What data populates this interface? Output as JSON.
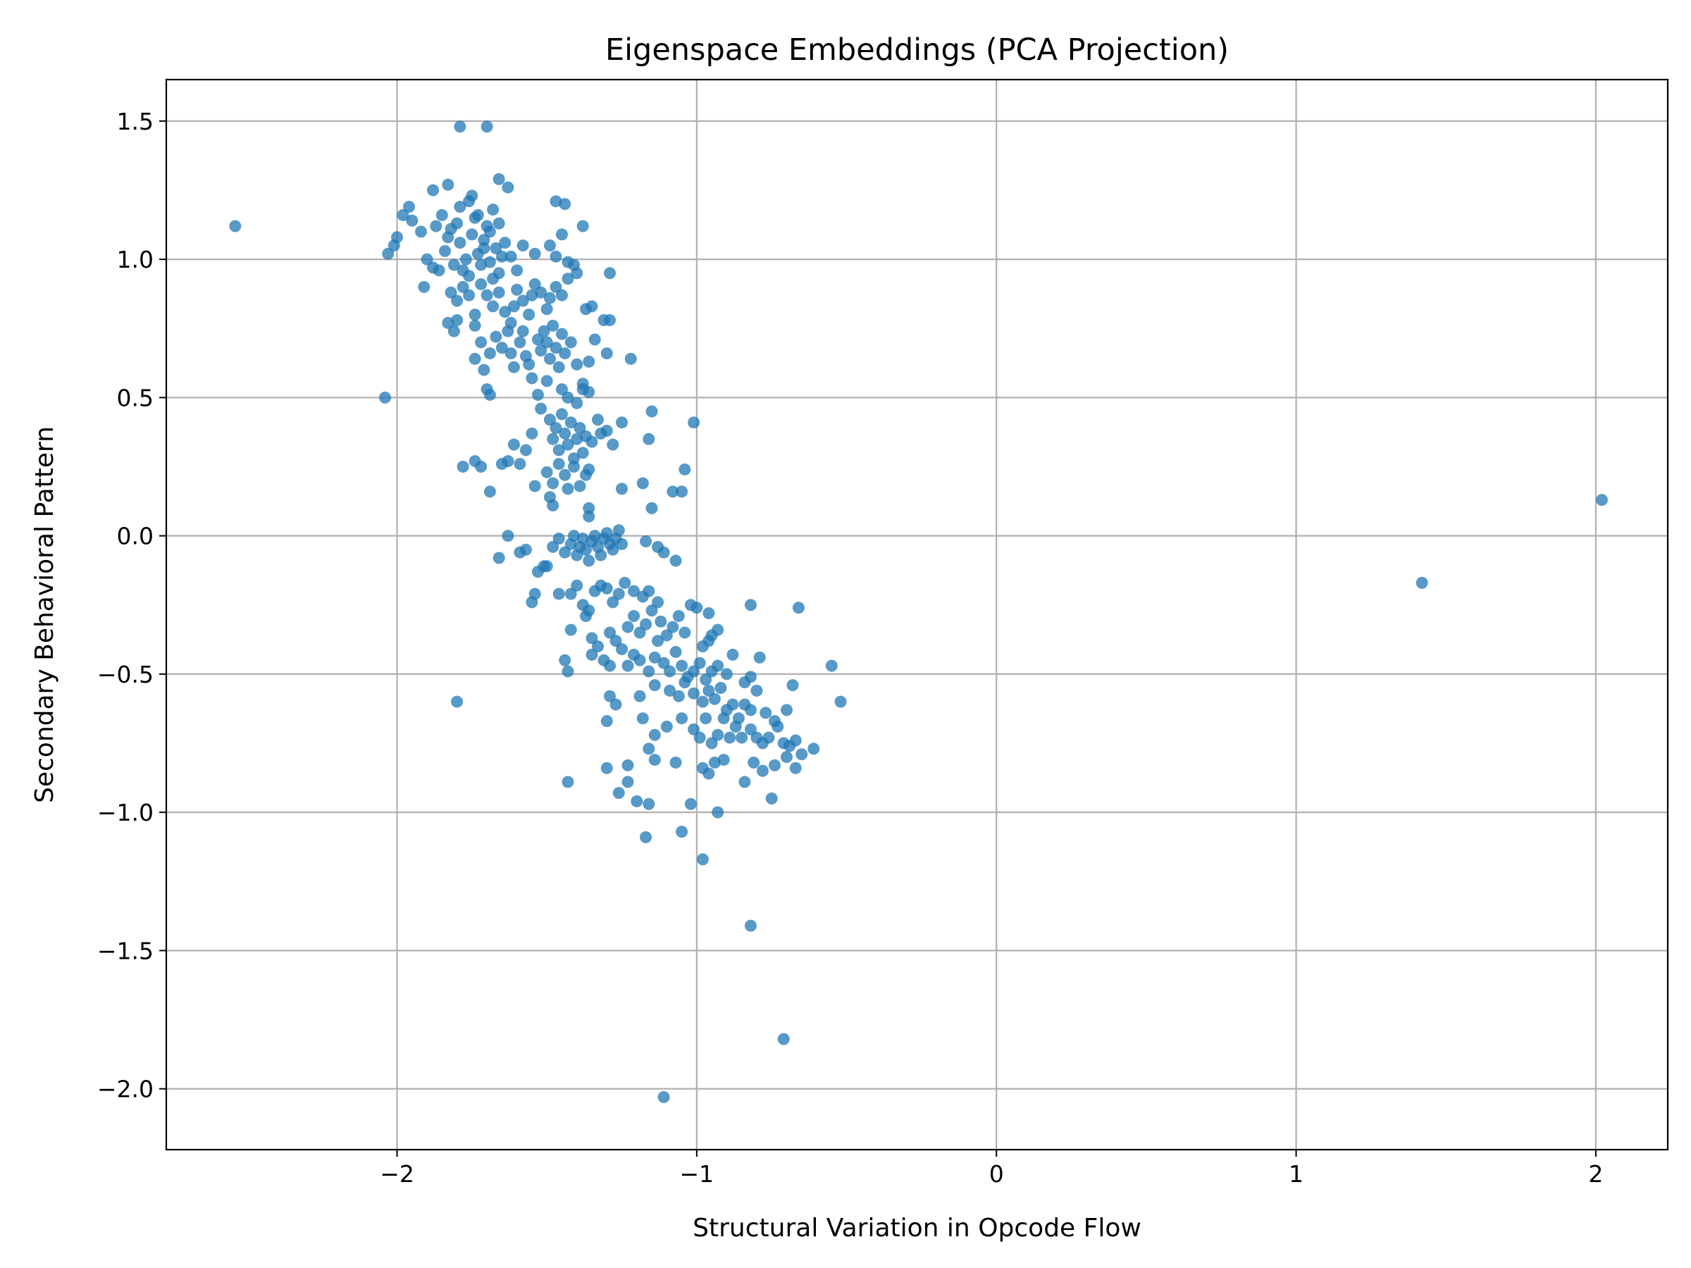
{
  "chart_data": {
    "type": "scatter",
    "title": "Eigenspace Embeddings (PCA Projection)",
    "xlabel": "Structural Variation in Opcode Flow",
    "ylabel": "Secondary Behavioral Pattern",
    "xlim": [
      -2.77,
      2.24
    ],
    "ylim": [
      -2.22,
      1.65
    ],
    "xticks": [
      -2,
      -1,
      0,
      1,
      2
    ],
    "xtick_labels": [
      "−2",
      "−1",
      "0",
      "1",
      "2"
    ],
    "yticks": [
      -2.0,
      -1.5,
      -1.0,
      -0.5,
      0.0,
      0.5,
      1.0,
      1.5
    ],
    "ytick_labels": [
      "−2.0",
      "−1.5",
      "−1.0",
      "−0.5",
      "0.0",
      "0.5",
      "1.0",
      "1.5"
    ],
    "grid": true,
    "marker_color": "#1f77b4",
    "marker_alpha": 0.75,
    "points": [
      [
        -2.54,
        1.12
      ],
      [
        2.02,
        0.13
      ],
      [
        1.42,
        -0.17
      ],
      [
        -1.11,
        -2.03
      ],
      [
        -0.71,
        -1.82
      ],
      [
        -0.82,
        -1.41
      ],
      [
        -1.79,
        1.48
      ],
      [
        -1.7,
        1.48
      ],
      [
        -1.88,
        1.25
      ],
      [
        -1.83,
        1.27
      ],
      [
        -1.66,
        1.29
      ],
      [
        -1.63,
        1.26
      ],
      [
        -1.96,
        1.19
      ],
      [
        -1.98,
        1.16
      ],
      [
        -1.75,
        1.23
      ],
      [
        -1.68,
        1.18
      ],
      [
        -1.47,
        1.21
      ],
      [
        -1.44,
        1.2
      ],
      [
        -1.38,
        1.12
      ],
      [
        -2.03,
        1.02
      ],
      [
        -2.01,
        1.05
      ],
      [
        -2.0,
        1.08
      ],
      [
        -1.95,
        1.14
      ],
      [
        -1.92,
        1.1
      ],
      [
        -1.9,
        1.0
      ],
      [
        -1.88,
        0.97
      ],
      [
        -1.86,
        0.96
      ],
      [
        -1.84,
        1.03
      ],
      [
        -1.82,
        1.11
      ],
      [
        -1.8,
        1.13
      ],
      [
        -1.79,
        1.06
      ],
      [
        -1.77,
        1.0
      ],
      [
        -1.76,
        0.94
      ],
      [
        -1.75,
        1.09
      ],
      [
        -1.74,
        1.15
      ],
      [
        -1.73,
        1.02
      ],
      [
        -1.72,
        0.98
      ],
      [
        -1.71,
        1.07
      ],
      [
        -1.7,
        1.12
      ],
      [
        -1.69,
        0.99
      ],
      [
        -1.68,
        0.93
      ],
      [
        -1.67,
        1.04
      ],
      [
        -1.66,
        0.95
      ],
      [
        -1.65,
        1.01
      ],
      [
        -1.64,
        1.06
      ],
      [
        -1.81,
        0.98
      ],
      [
        -1.78,
        0.96
      ],
      [
        -1.83,
        1.08
      ],
      [
        -1.85,
        1.16
      ],
      [
        -1.87,
        1.12
      ],
      [
        -1.79,
        1.19
      ],
      [
        -1.76,
        1.21
      ],
      [
        -1.73,
        1.16
      ],
      [
        -1.71,
        1.04
      ],
      [
        -1.69,
        1.1
      ],
      [
        -1.66,
        1.13
      ],
      [
        -1.62,
        1.01
      ],
      [
        -1.6,
        0.96
      ],
      [
        -1.58,
        1.05
      ],
      [
        -1.54,
        1.02
      ],
      [
        -1.49,
        1.05
      ],
      [
        -1.47,
        1.01
      ],
      [
        -1.45,
        1.09
      ],
      [
        -1.43,
        0.99
      ],
      [
        -1.41,
        0.98
      ],
      [
        -1.91,
        0.9
      ],
      [
        -1.8,
        0.85
      ],
      [
        -1.8,
        0.78
      ],
      [
        -1.81,
        0.74
      ],
      [
        -1.83,
        0.77
      ],
      [
        -1.82,
        0.88
      ],
      [
        -1.78,
        0.9
      ],
      [
        -1.76,
        0.87
      ],
      [
        -1.74,
        0.8
      ],
      [
        -1.72,
        0.91
      ],
      [
        -1.7,
        0.87
      ],
      [
        -1.68,
        0.83
      ],
      [
        -1.66,
        0.88
      ],
      [
        -1.64,
        0.81
      ],
      [
        -1.62,
        0.77
      ],
      [
        -1.61,
        0.83
      ],
      [
        -1.6,
        0.89
      ],
      [
        -1.58,
        0.85
      ],
      [
        -1.56,
        0.8
      ],
      [
        -1.55,
        0.87
      ],
      [
        -1.54,
        0.91
      ],
      [
        -1.52,
        0.88
      ],
      [
        -1.5,
        0.82
      ],
      [
        -1.49,
        0.86
      ],
      [
        -1.47,
        0.9
      ],
      [
        -1.45,
        0.87
      ],
      [
        -1.43,
        0.93
      ],
      [
        -1.4,
        0.95
      ],
      [
        -1.37,
        0.82
      ],
      [
        -1.35,
        0.83
      ],
      [
        -1.31,
        0.78
      ],
      [
        -1.29,
        0.78
      ],
      [
        -1.29,
        0.95
      ],
      [
        -1.74,
        0.76
      ],
      [
        -1.72,
        0.7
      ],
      [
        -1.74,
        0.64
      ],
      [
        -1.71,
        0.6
      ],
      [
        -1.69,
        0.66
      ],
      [
        -1.67,
        0.72
      ],
      [
        -1.65,
        0.68
      ],
      [
        -1.63,
        0.74
      ],
      [
        -1.62,
        0.66
      ],
      [
        -1.61,
        0.61
      ],
      [
        -1.59,
        0.7
      ],
      [
        -1.58,
        0.74
      ],
      [
        -1.57,
        0.65
      ],
      [
        -1.56,
        0.62
      ],
      [
        -1.55,
        0.57
      ],
      [
        -1.53,
        0.71
      ],
      [
        -1.52,
        0.67
      ],
      [
        -1.51,
        0.74
      ],
      [
        -1.5,
        0.7
      ],
      [
        -1.49,
        0.64
      ],
      [
        -1.48,
        0.76
      ],
      [
        -1.47,
        0.68
      ],
      [
        -1.46,
        0.61
      ],
      [
        -1.45,
        0.73
      ],
      [
        -1.44,
        0.66
      ],
      [
        -1.42,
        0.7
      ],
      [
        -1.4,
        0.62
      ],
      [
        -1.38,
        0.55
      ],
      [
        -1.36,
        0.63
      ],
      [
        -1.34,
        0.71
      ],
      [
        -1.3,
        0.66
      ],
      [
        -1.22,
        0.64
      ],
      [
        -1.7,
        0.53
      ],
      [
        -1.69,
        0.51
      ],
      [
        -1.53,
        0.51
      ],
      [
        -1.5,
        0.56
      ],
      [
        -1.45,
        0.53
      ],
      [
        -1.43,
        0.5
      ],
      [
        -1.4,
        0.48
      ],
      [
        -1.38,
        0.53
      ],
      [
        -1.36,
        0.52
      ],
      [
        -2.04,
        0.5
      ],
      [
        -1.52,
        0.46
      ],
      [
        -1.49,
        0.42
      ],
      [
        -1.48,
        0.35
      ],
      [
        -1.47,
        0.39
      ],
      [
        -1.46,
        0.31
      ],
      [
        -1.45,
        0.44
      ],
      [
        -1.44,
        0.37
      ],
      [
        -1.43,
        0.33
      ],
      [
        -1.42,
        0.41
      ],
      [
        -1.41,
        0.28
      ],
      [
        -1.4,
        0.35
      ],
      [
        -1.39,
        0.39
      ],
      [
        -1.38,
        0.3
      ],
      [
        -1.37,
        0.36
      ],
      [
        -1.36,
        0.24
      ],
      [
        -1.35,
        0.34
      ],
      [
        -1.33,
        0.42
      ],
      [
        -1.32,
        0.37
      ],
      [
        -1.3,
        0.38
      ],
      [
        -1.28,
        0.33
      ],
      [
        -1.25,
        0.41
      ],
      [
        -1.55,
        0.37
      ],
      [
        -1.57,
        0.31
      ],
      [
        -1.59,
        0.26
      ],
      [
        -1.61,
        0.33
      ],
      [
        -1.5,
        0.23
      ],
      [
        -1.48,
        0.19
      ],
      [
        -1.46,
        0.26
      ],
      [
        -1.44,
        0.22
      ],
      [
        -1.41,
        0.25
      ],
      [
        -1.39,
        0.18
      ],
      [
        -1.37,
        0.22
      ],
      [
        -1.63,
        0.27
      ],
      [
        -1.65,
        0.26
      ],
      [
        -1.74,
        0.27
      ],
      [
        -1.72,
        0.25
      ],
      [
        -1.78,
        0.25
      ],
      [
        -1.69,
        0.16
      ],
      [
        -1.54,
        0.18
      ],
      [
        -1.49,
        0.14
      ],
      [
        -1.48,
        0.11
      ],
      [
        -1.43,
        0.17
      ],
      [
        -1.36,
        0.1
      ],
      [
        -1.36,
        0.07
      ],
      [
        -1.25,
        0.17
      ],
      [
        -1.18,
        0.19
      ],
      [
        -1.15,
        0.45
      ],
      [
        -1.16,
        0.35
      ],
      [
        -1.15,
        0.1
      ],
      [
        -1.08,
        0.16
      ],
      [
        -1.05,
        0.16
      ],
      [
        -1.04,
        0.24
      ],
      [
        -1.01,
        0.41
      ],
      [
        -1.63,
        0.0
      ],
      [
        -1.66,
        -0.08
      ],
      [
        -1.59,
        -0.06
      ],
      [
        -1.57,
        -0.05
      ],
      [
        -1.53,
        -0.13
      ],
      [
        -1.5,
        -0.11
      ],
      [
        -1.48,
        -0.04
      ],
      [
        -1.46,
        -0.01
      ],
      [
        -1.44,
        -0.06
      ],
      [
        -1.42,
        -0.03
      ],
      [
        -1.41,
        0.0
      ],
      [
        -1.4,
        -0.07
      ],
      [
        -1.39,
        -0.04
      ],
      [
        -1.38,
        -0.01
      ],
      [
        -1.37,
        -0.05
      ],
      [
        -1.36,
        -0.09
      ],
      [
        -1.35,
        -0.02
      ],
      [
        -1.34,
        0.0
      ],
      [
        -1.33,
        -0.04
      ],
      [
        -1.32,
        -0.07
      ],
      [
        -1.31,
        -0.01
      ],
      [
        -1.3,
        0.01
      ],
      [
        -1.29,
        -0.03
      ],
      [
        -1.28,
        -0.05
      ],
      [
        -1.27,
        -0.01
      ],
      [
        -1.26,
        0.02
      ],
      [
        -1.25,
        -0.03
      ],
      [
        -1.17,
        -0.02
      ],
      [
        -1.13,
        -0.04
      ],
      [
        -1.11,
        -0.06
      ],
      [
        -1.07,
        -0.09
      ],
      [
        -1.51,
        -0.11
      ],
      [
        -1.54,
        -0.21
      ],
      [
        -1.55,
        -0.24
      ],
      [
        -1.46,
        -0.21
      ],
      [
        -1.42,
        -0.21
      ],
      [
        -1.4,
        -0.18
      ],
      [
        -1.38,
        -0.25
      ],
      [
        -1.36,
        -0.27
      ],
      [
        -1.34,
        -0.2
      ],
      [
        -1.32,
        -0.18
      ],
      [
        -1.3,
        -0.19
      ],
      [
        -1.28,
        -0.24
      ],
      [
        -1.26,
        -0.21
      ],
      [
        -1.24,
        -0.17
      ],
      [
        -1.21,
        -0.2
      ],
      [
        -1.18,
        -0.22
      ],
      [
        -1.16,
        -0.2
      ],
      [
        -1.13,
        -0.24
      ],
      [
        -1.37,
        -0.29
      ],
      [
        -1.42,
        -0.34
      ],
      [
        -1.35,
        -0.37
      ],
      [
        -1.33,
        -0.4
      ],
      [
        -1.35,
        -0.43
      ],
      [
        -1.29,
        -0.35
      ],
      [
        -1.27,
        -0.38
      ],
      [
        -1.25,
        -0.41
      ],
      [
        -1.23,
        -0.33
      ],
      [
        -1.21,
        -0.29
      ],
      [
        -1.19,
        -0.35
      ],
      [
        -1.17,
        -0.32
      ],
      [
        -1.15,
        -0.27
      ],
      [
        -1.13,
        -0.38
      ],
      [
        -1.12,
        -0.31
      ],
      [
        -1.1,
        -0.36
      ],
      [
        -1.08,
        -0.33
      ],
      [
        -1.06,
        -0.29
      ],
      [
        -1.04,
        -0.35
      ],
      [
        -1.02,
        -0.25
      ],
      [
        -1.0,
        -0.26
      ],
      [
        -0.98,
        -0.4
      ],
      [
        -0.96,
        -0.38
      ],
      [
        -0.95,
        -0.36
      ],
      [
        -0.93,
        -0.34
      ],
      [
        -0.96,
        -0.28
      ],
      [
        -0.82,
        -0.25
      ],
      [
        -0.66,
        -0.26
      ],
      [
        -1.44,
        -0.45
      ],
      [
        -1.43,
        -0.49
      ],
      [
        -1.31,
        -0.45
      ],
      [
        -1.29,
        -0.47
      ],
      [
        -1.23,
        -0.47
      ],
      [
        -1.21,
        -0.43
      ],
      [
        -1.19,
        -0.45
      ],
      [
        -1.16,
        -0.49
      ],
      [
        -1.14,
        -0.44
      ],
      [
        -1.11,
        -0.46
      ],
      [
        -1.09,
        -0.49
      ],
      [
        -1.07,
        -0.42
      ],
      [
        -1.05,
        -0.47
      ],
      [
        -1.03,
        -0.51
      ],
      [
        -1.01,
        -0.49
      ],
      [
        -0.99,
        -0.46
      ],
      [
        -0.97,
        -0.52
      ],
      [
        -0.95,
        -0.49
      ],
      [
        -0.93,
        -0.47
      ],
      [
        -0.9,
        -0.5
      ],
      [
        -0.88,
        -0.43
      ],
      [
        -0.84,
        -0.53
      ],
      [
        -0.82,
        -0.51
      ],
      [
        -0.79,
        -0.44
      ],
      [
        -0.55,
        -0.47
      ],
      [
        -1.29,
        -0.58
      ],
      [
        -1.27,
        -0.61
      ],
      [
        -1.19,
        -0.58
      ],
      [
        -1.14,
        -0.54
      ],
      [
        -1.09,
        -0.56
      ],
      [
        -1.06,
        -0.58
      ],
      [
        -1.04,
        -0.53
      ],
      [
        -1.01,
        -0.57
      ],
      [
        -0.98,
        -0.6
      ],
      [
        -0.96,
        -0.56
      ],
      [
        -0.94,
        -0.59
      ],
      [
        -0.92,
        -0.55
      ],
      [
        -0.9,
        -0.63
      ],
      [
        -0.88,
        -0.61
      ],
      [
        -0.86,
        -0.66
      ],
      [
        -0.84,
        -0.61
      ],
      [
        -0.82,
        -0.63
      ],
      [
        -0.8,
        -0.56
      ],
      [
        -0.77,
        -0.64
      ],
      [
        -0.74,
        -0.67
      ],
      [
        -0.7,
        -0.63
      ],
      [
        -0.68,
        -0.54
      ],
      [
        -0.52,
        -0.6
      ],
      [
        -1.8,
        -0.6
      ],
      [
        -1.3,
        -0.67
      ],
      [
        -1.18,
        -0.66
      ],
      [
        -1.14,
        -0.72
      ],
      [
        -1.1,
        -0.69
      ],
      [
        -1.05,
        -0.66
      ],
      [
        -1.01,
        -0.7
      ],
      [
        -0.99,
        -0.73
      ],
      [
        -0.97,
        -0.66
      ],
      [
        -0.95,
        -0.75
      ],
      [
        -0.93,
        -0.72
      ],
      [
        -0.91,
        -0.66
      ],
      [
        -0.89,
        -0.73
      ],
      [
        -0.87,
        -0.69
      ],
      [
        -0.85,
        -0.73
      ],
      [
        -0.82,
        -0.7
      ],
      [
        -0.8,
        -0.73
      ],
      [
        -0.78,
        -0.75
      ],
      [
        -0.76,
        -0.73
      ],
      [
        -0.73,
        -0.69
      ],
      [
        -0.71,
        -0.75
      ],
      [
        -0.69,
        -0.76
      ],
      [
        -0.67,
        -0.74
      ],
      [
        -0.65,
        -0.79
      ],
      [
        -0.61,
        -0.77
      ],
      [
        -1.3,
        -0.84
      ],
      [
        -1.23,
        -0.83
      ],
      [
        -1.16,
        -0.77
      ],
      [
        -1.14,
        -0.81
      ],
      [
        -1.07,
        -0.82
      ],
      [
        -0.98,
        -0.84
      ],
      [
        -0.96,
        -0.86
      ],
      [
        -0.94,
        -0.82
      ],
      [
        -0.91,
        -0.81
      ],
      [
        -0.84,
        -0.89
      ],
      [
        -0.81,
        -0.82
      ],
      [
        -0.78,
        -0.85
      ],
      [
        -0.74,
        -0.83
      ],
      [
        -0.7,
        -0.8
      ],
      [
        -0.67,
        -0.84
      ],
      [
        -1.43,
        -0.89
      ],
      [
        -1.26,
        -0.93
      ],
      [
        -1.23,
        -0.89
      ],
      [
        -1.2,
        -0.96
      ],
      [
        -1.16,
        -0.97
      ],
      [
        -1.02,
        -0.97
      ],
      [
        -0.93,
        -1.0
      ],
      [
        -0.75,
        -0.95
      ],
      [
        -1.17,
        -1.09
      ],
      [
        -1.05,
        -1.07
      ],
      [
        -0.98,
        -1.17
      ]
    ]
  }
}
